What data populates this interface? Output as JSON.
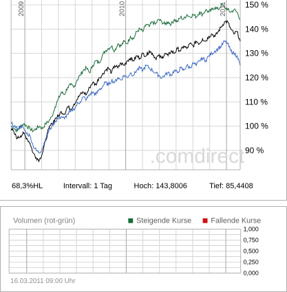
{
  "chart_data": [
    {
      "type": "line",
      "title": "",
      "watermark": ".comdirect",
      "x_tick_labels": [
        "2009",
        "2010",
        "2011"
      ],
      "y_tick_labels": [
        "90 %",
        "100 %",
        "110 %",
        "120 %",
        "130 %",
        "140 %",
        "150 %"
      ],
      "ylim": [
        82,
        152
      ],
      "grid": true,
      "series": [
        {
          "color": "#1a6b3a",
          "values": [
            100,
            99,
            98,
            100,
            101,
            100,
            99,
            98,
            99,
            100,
            99,
            101,
            102,
            104,
            108,
            111,
            114,
            113,
            116,
            117,
            116,
            119,
            121,
            123,
            124,
            122,
            125,
            127,
            126,
            129,
            131,
            132,
            133,
            131,
            134,
            133,
            135,
            134,
            137,
            136,
            139,
            140,
            139,
            142,
            141,
            143,
            142,
            144,
            143,
            142,
            143,
            142,
            144,
            143,
            145,
            144,
            146,
            145,
            146,
            145,
            147,
            146,
            148,
            147,
            148,
            149,
            148,
            150,
            149,
            148,
            147,
            148,
            147,
            144
          ]
        },
        {
          "color": "#000000",
          "values": [
            99,
            97,
            95,
            96,
            97,
            95,
            93,
            89,
            87,
            86,
            89,
            94,
            99,
            101,
            103,
            104,
            106,
            105,
            108,
            107,
            109,
            111,
            113,
            114,
            113,
            116,
            118,
            117,
            120,
            121,
            123,
            124,
            122,
            125,
            124,
            126,
            125,
            127,
            128,
            127,
            129,
            128,
            130,
            129,
            131,
            130,
            128,
            129,
            128,
            130,
            129,
            131,
            130,
            132,
            131,
            133,
            132,
            134,
            133,
            135,
            134,
            136,
            135,
            137,
            138,
            137,
            139,
            141,
            143,
            143,
            140,
            138,
            139,
            135
          ]
        },
        {
          "color": "#3a6bc0",
          "values": [
            101,
            100,
            99,
            100,
            99,
            97,
            96,
            92,
            90,
            89,
            91,
            95,
            98,
            100,
            102,
            103,
            104,
            103,
            105,
            106,
            107,
            109,
            110,
            112,
            111,
            113,
            114,
            113,
            115,
            116,
            118,
            117,
            119,
            118,
            120,
            119,
            121,
            120,
            122,
            121,
            123,
            124,
            123,
            125,
            124,
            123,
            122,
            121,
            120,
            121,
            122,
            121,
            123,
            122,
            124,
            123,
            125,
            124,
            126,
            125,
            127,
            128,
            127,
            129,
            130,
            131,
            132,
            133,
            135,
            134,
            131,
            130,
            129,
            125
          ]
        }
      ],
      "stats": {
        "hl": "68,3%HL",
        "interval": "Intervall: 1 Tag",
        "high": "Hoch: 143,8006",
        "low": "Tief: 85,4408"
      }
    },
    {
      "type": "bar",
      "title": "Volumen (rot-grün)",
      "legend": [
        {
          "label": "Steigende Kurse",
          "color": "#1a6b3a"
        },
        {
          "label": "Fallende Kurse",
          "color": "#cc1111"
        }
      ],
      "y_tick_labels": [
        "1,000",
        "0,750",
        "0,500",
        "0,250",
        "0,000"
      ],
      "ylim": [
        0,
        1
      ],
      "grid": true,
      "timestamp": "16.03.2011 09:00 Uhr"
    }
  ]
}
